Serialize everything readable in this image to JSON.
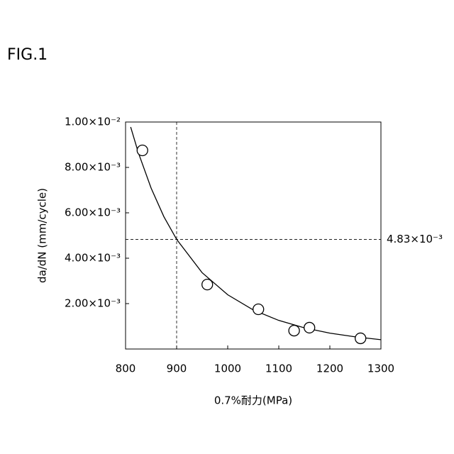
{
  "chart_data": {
    "type": "scatter",
    "figure_label": "FIG.1",
    "x_label": "0.7%耐力(MPa)",
    "y_label": "da/dN (mm/cycle)",
    "xlim": [
      800,
      1300
    ],
    "xticks": [
      800,
      900,
      1000,
      1100,
      1200,
      1300
    ],
    "ylim": [
      0,
      0.01
    ],
    "yticks": [
      {
        "value": 0.002,
        "label": "2.00×10⁻³"
      },
      {
        "value": 0.004,
        "label": "4.00×10⁻³"
      },
      {
        "value": 0.006,
        "label": "6.00×10⁻³"
      },
      {
        "value": 0.008,
        "label": "8.00×10⁻³"
      },
      {
        "value": 0.01,
        "label": "1.00×10⁻²"
      }
    ],
    "x": [
      833,
      960,
      1060,
      1130,
      1160,
      1260
    ],
    "values": [
      0.00875,
      0.00284,
      0.00175,
      0.00081,
      0.00094,
      0.00047
    ],
    "color": "#000000",
    "fit": {
      "x": [
        810,
        825,
        850,
        875,
        900,
        950,
        1000,
        1050,
        1100,
        1150,
        1200,
        1250,
        1300
      ],
      "values": [
        0.00978,
        0.00865,
        0.00709,
        0.00583,
        0.00483,
        0.00336,
        0.00239,
        0.00172,
        0.00126,
        0.000935,
        0.0007,
        0.000535,
        0.00041
      ]
    },
    "vline": 900,
    "hline": {
      "value": 0.00483,
      "label": "4.83×10⁻³"
    }
  }
}
